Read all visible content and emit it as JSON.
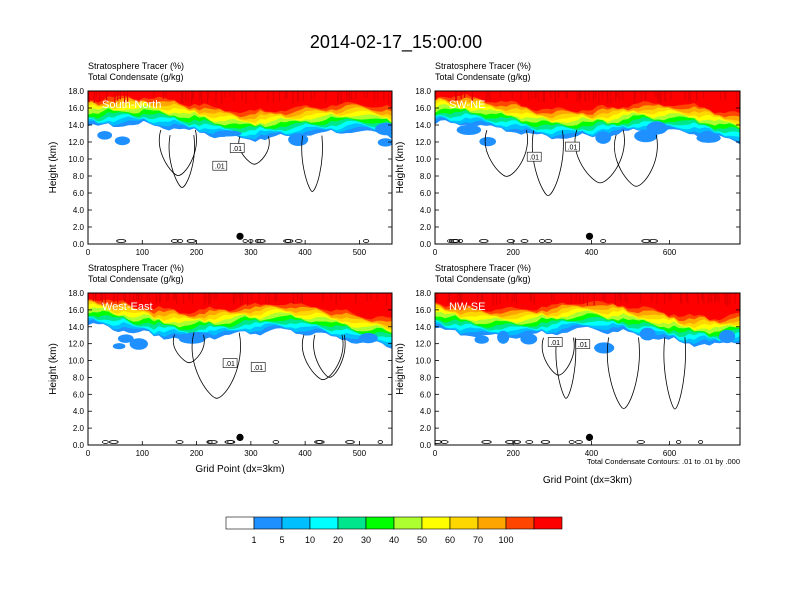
{
  "chart_data": {
    "type": "heatmap",
    "title": "2014-02-17_15:00:00",
    "colorbar": {
      "labels": [
        "1",
        "5",
        "10",
        "20",
        "30",
        "40",
        "50",
        "60",
        "70",
        "100"
      ],
      "colors": [
        "#ffffff",
        "#1e90ff",
        "#00bfff",
        "#00ffff",
        "#00e68c",
        "#00ff00",
        "#adff2f",
        "#ffff00",
        "#ffd700",
        "#ffa500",
        "#ff4500",
        "#ff0000"
      ]
    },
    "contour_note": "Total Condensate Contours: .01 to .01 by .000",
    "contour_label": ".01",
    "panels": [
      {
        "id": "south-north",
        "label": "South-North",
        "subtitle1": "Stratosphere Tracer   (%)",
        "subtitle2": "Total Condensate   (g/kg)",
        "ylabel": "Height (km)",
        "xlabel": "",
        "xlim": [
          0,
          560
        ],
        "xticks": [
          "0",
          "100",
          "200",
          "300",
          "400",
          "500"
        ],
        "xtick_values": [
          0,
          100,
          200,
          300,
          400,
          500
        ],
        "ylim": [
          0,
          18
        ],
        "yticks": [
          "0.0",
          "2.0",
          "4.0",
          "6.0",
          "8.0",
          "10.0",
          "12.0",
          "14.0",
          "16.0",
          "18.0"
        ],
        "marker_x": 280
      },
      {
        "id": "sw-ne",
        "label": "SW-NE",
        "subtitle1": "Stratosphere Tracer   (%)",
        "subtitle2": "Total Condensate   (g/kg)",
        "ylabel": "Height (km)",
        "xlabel": "",
        "xlim": [
          0,
          780
        ],
        "xticks": [
          "0",
          "200",
          "400",
          "600"
        ],
        "xtick_values": [
          0,
          200,
          400,
          600
        ],
        "ylim": [
          0,
          18
        ],
        "yticks": [
          "0.0",
          "2.0",
          "4.0",
          "6.0",
          "8.0",
          "10.0",
          "12.0",
          "14.0",
          "16.0",
          "18.0"
        ],
        "marker_x": 395
      },
      {
        "id": "west-east",
        "label": "West-East",
        "subtitle1": "Stratosphere Tracer   (%)",
        "subtitle2": "Total Condensate   (g/kg)",
        "ylabel": "Height (km)",
        "xlabel": "Grid Point (dx=3km)",
        "xlim": [
          0,
          560
        ],
        "xticks": [
          "0",
          "100",
          "200",
          "300",
          "400",
          "500"
        ],
        "xtick_values": [
          0,
          100,
          200,
          300,
          400,
          500
        ],
        "ylim": [
          0,
          18
        ],
        "yticks": [
          "0.0",
          "2.0",
          "4.0",
          "6.0",
          "8.0",
          "10.0",
          "12.0",
          "14.0",
          "16.0",
          "18.0"
        ],
        "marker_x": 280
      },
      {
        "id": "nw-se",
        "label": "NW-SE",
        "subtitle1": "Stratosphere Tracer   (%)",
        "subtitle2": "Total Condensate   (g/kg)",
        "ylabel": "Height (km)",
        "xlabel": "Grid Point (dx=3km)",
        "xlim": [
          0,
          780
        ],
        "xticks": [
          "0",
          "200",
          "400",
          "600"
        ],
        "xtick_values": [
          0,
          200,
          400,
          600
        ],
        "ylim": [
          0,
          18
        ],
        "yticks": [
          "0.0",
          "2.0",
          "4.0",
          "6.0",
          "8.0",
          "10.0",
          "12.0",
          "14.0",
          "16.0",
          "18.0"
        ],
        "marker_x": 395
      }
    ]
  }
}
